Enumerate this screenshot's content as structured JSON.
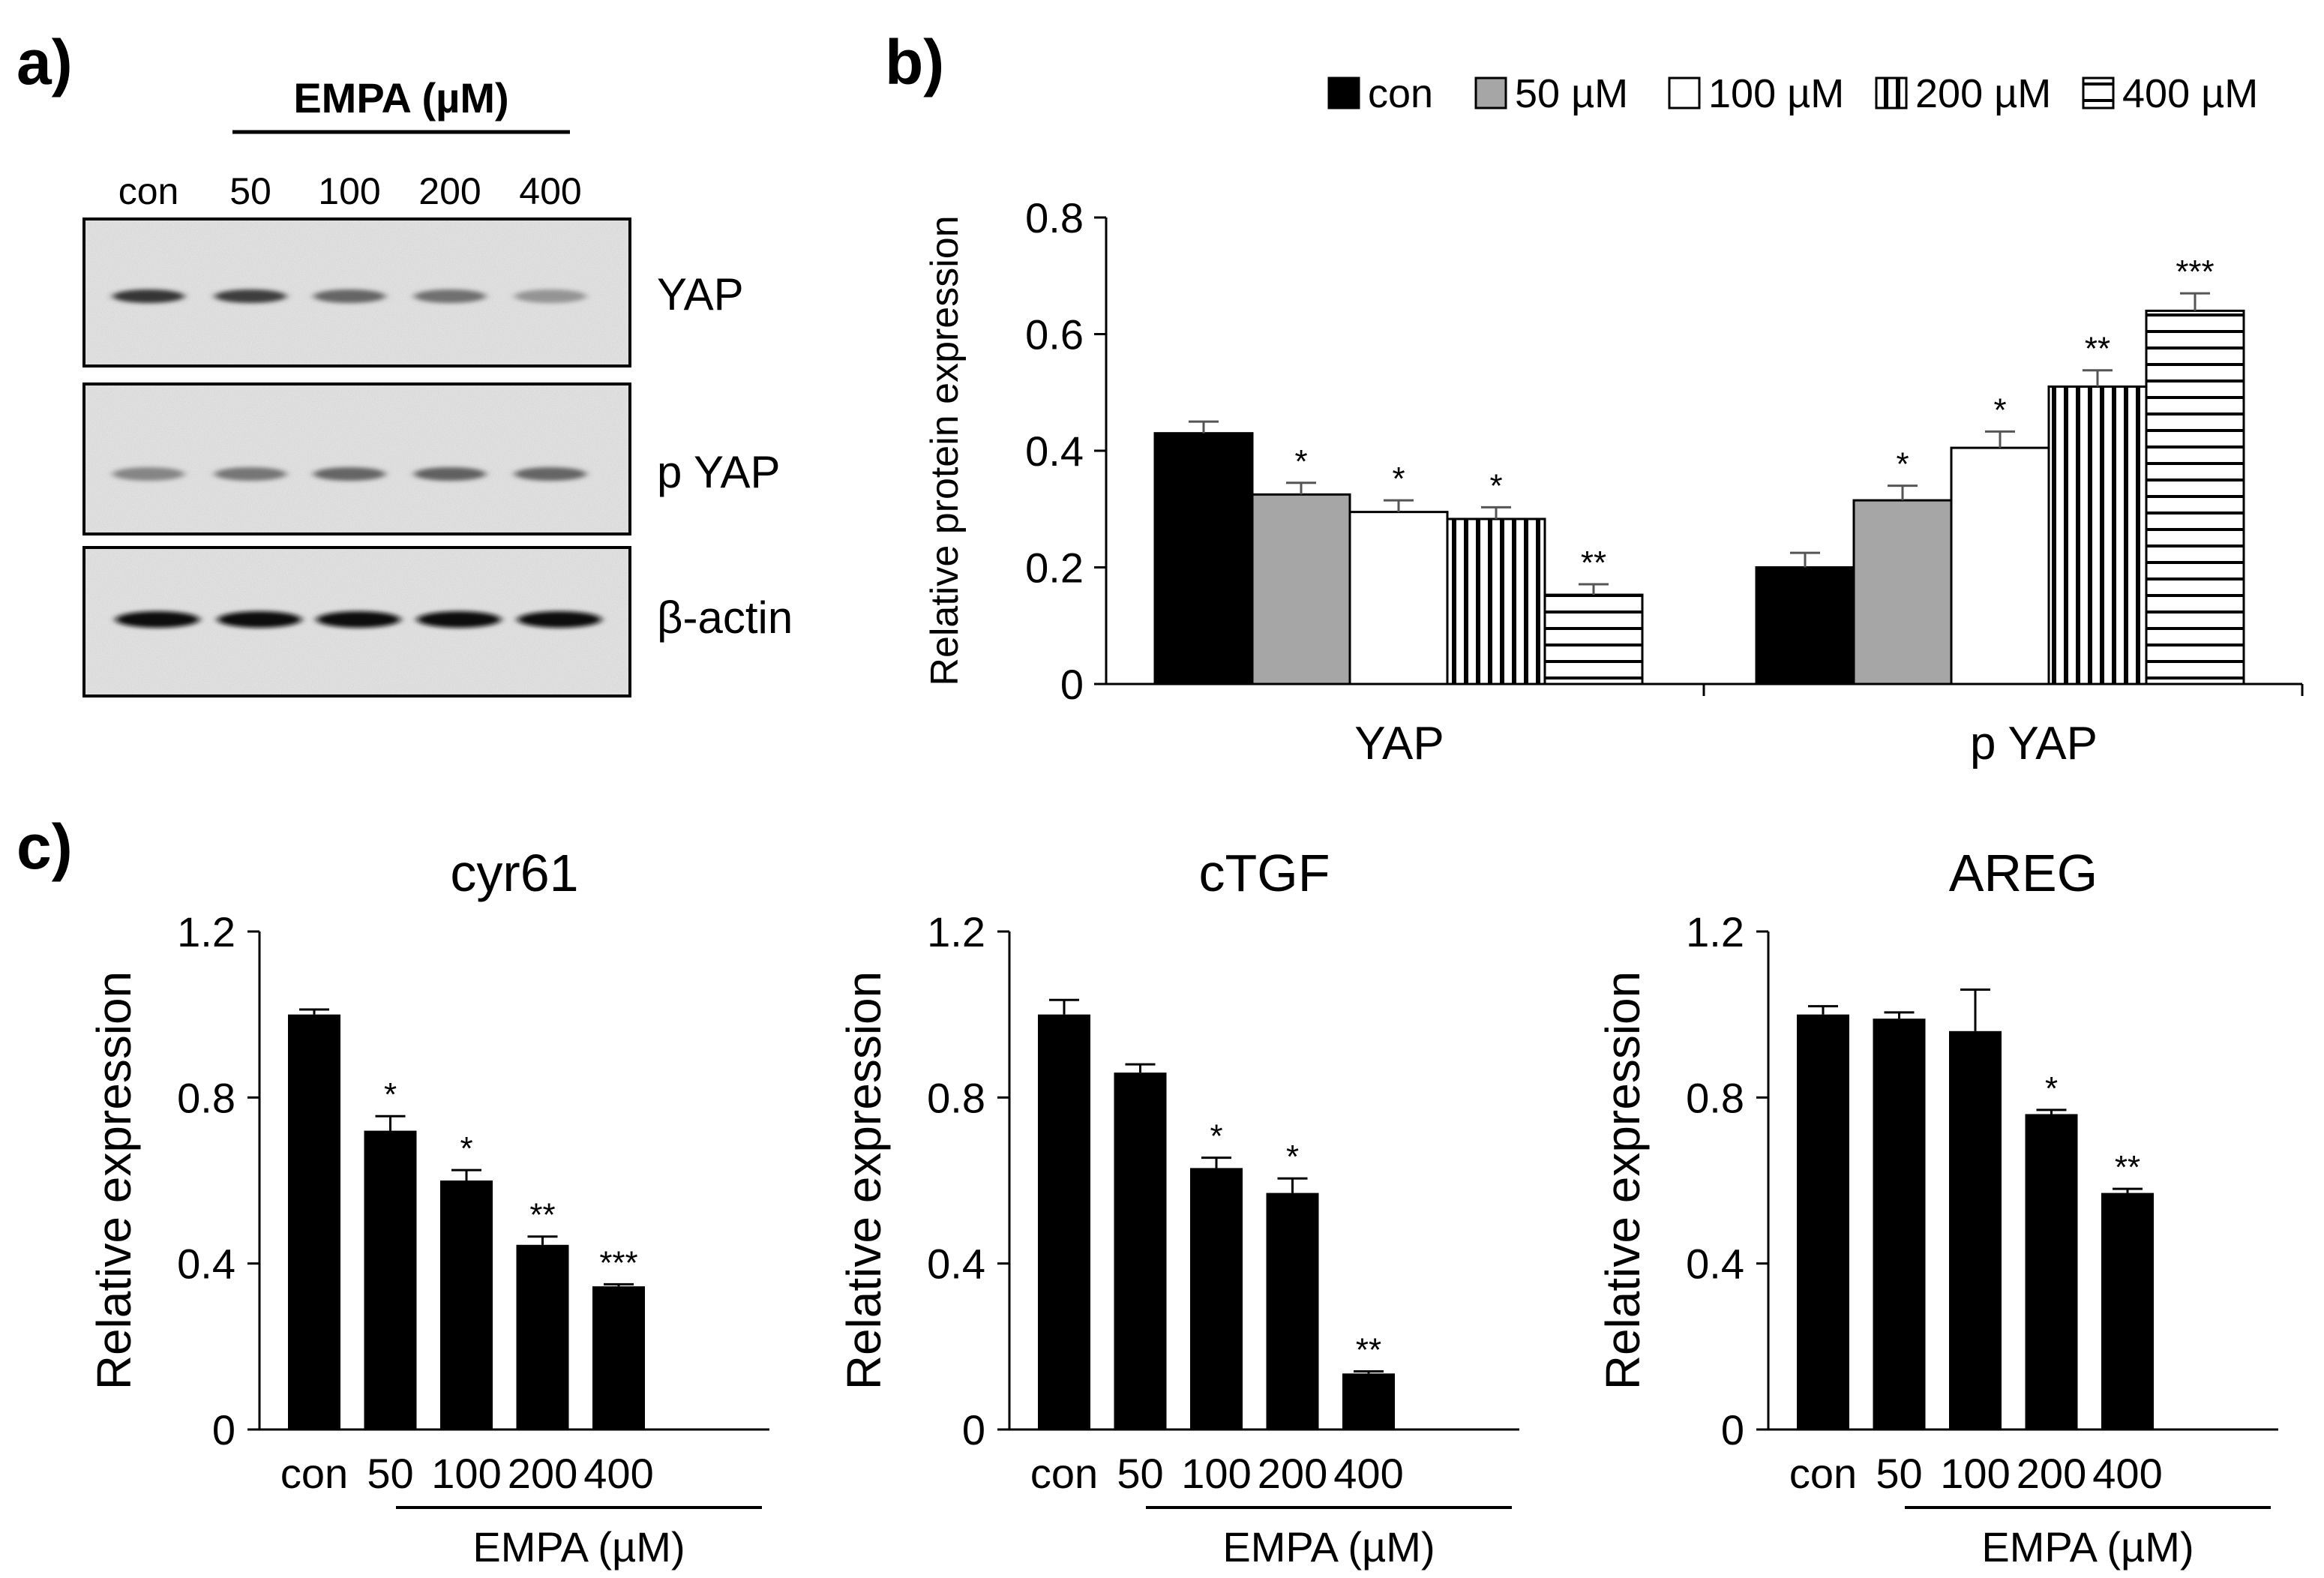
{
  "panel_labels": {
    "a": "a)",
    "b": "b)",
    "c": "c)"
  },
  "blot": {
    "treatment_label": "EMPA (µM)",
    "lanes": [
      "con",
      "50",
      "100",
      "200",
      "400"
    ],
    "rows": [
      {
        "label": "YAP",
        "intensity": [
          0.82,
          0.78,
          0.6,
          0.55,
          0.38
        ]
      },
      {
        "label": "p YAP",
        "intensity": [
          0.45,
          0.52,
          0.6,
          0.62,
          0.6
        ]
      },
      {
        "label": "β-actin",
        "intensity": [
          1.0,
          1.0,
          1.0,
          1.0,
          1.0
        ]
      }
    ]
  },
  "styles": {
    "bar_dark": "#000000",
    "bar_gray": "#a6a6a6",
    "bar_white": "#ffffff"
  },
  "chart_data": [
    {
      "id": "b",
      "type": "bar",
      "title": "",
      "ylabel": "Relative protein expression",
      "xlabel": "",
      "ylim": [
        0,
        0.8
      ],
      "yticks": [
        "0",
        "0.2",
        "0.4",
        "0.6",
        "0.8"
      ],
      "categories": [
        "YAP",
        "p YAP"
      ],
      "legend": [
        "con",
        "50 µM",
        "100 µM",
        "200 µM",
        "400 µM"
      ],
      "legend_placement": "top-right",
      "series": [
        {
          "name": "con",
          "pattern": "black",
          "values": [
            0.43,
            0.2
          ],
          "errors": [
            0.02,
            0.025
          ],
          "sig": [
            "",
            ""
          ]
        },
        {
          "name": "50 µM",
          "pattern": "gray",
          "values": [
            0.325,
            0.315
          ],
          "errors": [
            0.02,
            0.025
          ],
          "sig": [
            "*",
            "*"
          ]
        },
        {
          "name": "100 µM",
          "pattern": "white",
          "values": [
            0.295,
            0.405
          ],
          "errors": [
            0.02,
            0.028
          ],
          "sig": [
            "*",
            "*"
          ]
        },
        {
          "name": "200 µM",
          "pattern": "vertical",
          "values": [
            0.283,
            0.51
          ],
          "errors": [
            0.02,
            0.028
          ],
          "sig": [
            "*",
            "**"
          ]
        },
        {
          "name": "400 µM",
          "pattern": "horizontal",
          "values": [
            0.153,
            0.64
          ],
          "errors": [
            0.018,
            0.03
          ],
          "sig": [
            "**",
            "***"
          ]
        }
      ]
    },
    {
      "id": "c1",
      "type": "bar",
      "title": "cyr61",
      "ylabel": "Relative expression",
      "xlabel": "EMPA (µM)",
      "ylim": [
        0,
        1.2
      ],
      "yticks": [
        "0",
        "0.4",
        "0.8",
        "1.2"
      ],
      "categories": [
        "con",
        "50",
        "100",
        "200",
        "400"
      ],
      "values": [
        1.0,
        0.72,
        0.6,
        0.445,
        0.345
      ],
      "errors": [
        0.012,
        0.035,
        0.025,
        0.02,
        0.005
      ],
      "sig": [
        "",
        "*",
        "*",
        "**",
        "***"
      ]
    },
    {
      "id": "c2",
      "type": "bar",
      "title": "cTGF",
      "ylabel": "Relative expression",
      "xlabel": "EMPA (µM)",
      "ylim": [
        0,
        1.2
      ],
      "yticks": [
        "0",
        "0.4",
        "0.8",
        "1.2"
      ],
      "categories": [
        "con",
        "50",
        "100",
        "200",
        "400"
      ],
      "values": [
        1.0,
        0.86,
        0.63,
        0.57,
        0.135
      ],
      "errors": [
        0.035,
        0.02,
        0.025,
        0.035,
        0.005
      ],
      "sig": [
        "",
        "",
        "*",
        "*",
        "**"
      ]
    },
    {
      "id": "c3",
      "type": "bar",
      "title": "AREG",
      "ylabel": "Relative expression",
      "xlabel": "EMPA (µM)",
      "ylim": [
        0,
        1.2
      ],
      "yticks": [
        "0",
        "0.4",
        "0.8",
        "1.2"
      ],
      "categories": [
        "con",
        "50",
        "100",
        "200",
        "400"
      ],
      "values": [
        1.0,
        0.99,
        0.96,
        0.76,
        0.57
      ],
      "errors": [
        0.02,
        0.015,
        0.1,
        0.01,
        0.01
      ],
      "sig": [
        "",
        "",
        "",
        "*",
        "**"
      ]
    }
  ]
}
